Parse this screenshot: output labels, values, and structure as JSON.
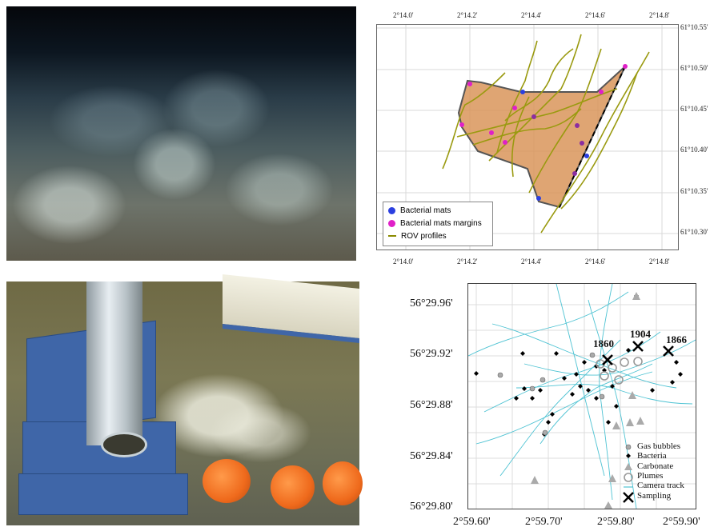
{
  "top_map": {
    "lon_ticks_top": [
      "2°14.0'",
      "2°14.2'",
      "2°14.4'",
      "2°14.6'",
      "2°14.8'"
    ],
    "lon_ticks_bottom": [
      "2°14.0'",
      "2°14.2'",
      "2°14.4'",
      "2°14.6'",
      "2°14.8'"
    ],
    "lat_ticks": [
      "61°10.55'",
      "61°10.50'",
      "61°10.45'",
      "61°10.40'",
      "61°10.35'",
      "61°10.30'"
    ],
    "legend": [
      {
        "label": "Bacterial mats",
        "color": "#2b3fe0"
      },
      {
        "label": "Bacterial mats margins",
        "color": "#e020c8"
      },
      {
        "label": "ROV profiles",
        "color": "#8a8a00"
      }
    ],
    "polygon_fill": "#d9955a"
  },
  "bottom_map": {
    "lat_ticks": [
      "56°29.96'",
      "56°29.92'",
      "56°29.88'",
      "56°29.84'",
      "56°29.80'"
    ],
    "lon_ticks": [
      "2°59.60'",
      "2°59.70'",
      "2°59.80'",
      "2°59.90'"
    ],
    "sampling_labels": [
      "1860",
      "1904",
      "1866"
    ],
    "legend": [
      {
        "label": "Gas bubbles",
        "symbol": "circle-filled-grey"
      },
      {
        "label": "Bacteria",
        "symbol": "diamond-black"
      },
      {
        "label": "Carbonate",
        "symbol": "triangle-grey"
      },
      {
        "label": "Plumes",
        "symbol": "circle-open-grey"
      },
      {
        "label": "Camera track",
        "symbol": "line-cyan"
      },
      {
        "label": "Sampling",
        "symbol": "cross-black"
      }
    ],
    "track_color": "#4fc3d3"
  }
}
